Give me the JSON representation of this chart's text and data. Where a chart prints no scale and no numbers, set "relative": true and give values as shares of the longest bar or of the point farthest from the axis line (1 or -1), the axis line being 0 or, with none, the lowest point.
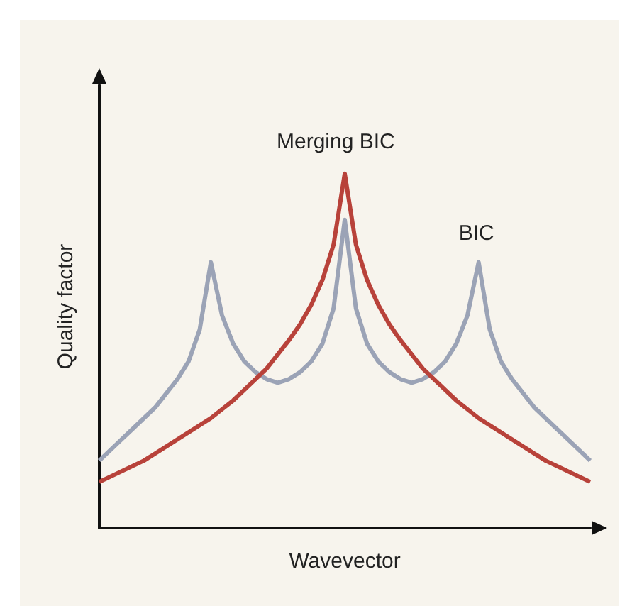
{
  "chart_data": {
    "type": "line",
    "relative": true,
    "xlabel": "Wavevector",
    "ylabel": "Quality factor",
    "categories": [
      null,
      null,
      null,
      null,
      null,
      null,
      null,
      null,
      null,
      null,
      null,
      null,
      null,
      null,
      null,
      null,
      null,
      null,
      null,
      null,
      null,
      null,
      null,
      null,
      null,
      null,
      null,
      null,
      null,
      null,
      null,
      null,
      null,
      null,
      null,
      null,
      null,
      null,
      null,
      null,
      null,
      null,
      null,
      null,
      null
    ],
    "series": [
      {
        "color": "#9ba3b6",
        "values": [
          0.19,
          0.22,
          0.25,
          0.28,
          0.31,
          0.34,
          0.38,
          0.42,
          0.47,
          0.56,
          0.75,
          0.6,
          0.52,
          0.47,
          0.44,
          0.42,
          0.41,
          0.42,
          0.44,
          0.47,
          0.52,
          0.62,
          0.87,
          0.62,
          0.52,
          0.47,
          0.44,
          0.42,
          0.41,
          0.42,
          0.44,
          0.47,
          0.52,
          0.6,
          0.75,
          0.56,
          0.47,
          0.42,
          0.38,
          0.34,
          0.31,
          0.28,
          0.25,
          0.22,
          0.19
        ]
      },
      {
        "color": "#b8423a",
        "values": [
          0.13,
          0.145,
          0.16,
          0.175,
          0.19,
          0.21,
          0.23,
          0.25,
          0.27,
          0.29,
          0.31,
          0.335,
          0.36,
          0.39,
          0.42,
          0.45,
          0.49,
          0.53,
          0.575,
          0.63,
          0.7,
          0.8,
          1.0,
          0.8,
          0.7,
          0.63,
          0.575,
          0.53,
          0.49,
          0.45,
          0.42,
          0.39,
          0.36,
          0.335,
          0.31,
          0.29,
          0.27,
          0.25,
          0.23,
          0.21,
          0.19,
          0.175,
          0.16,
          0.145,
          0.13
        ]
      }
    ],
    "annotations": [
      "Merging BIC",
      "BIC"
    ],
    "grid": false,
    "line_style": "solid"
  }
}
